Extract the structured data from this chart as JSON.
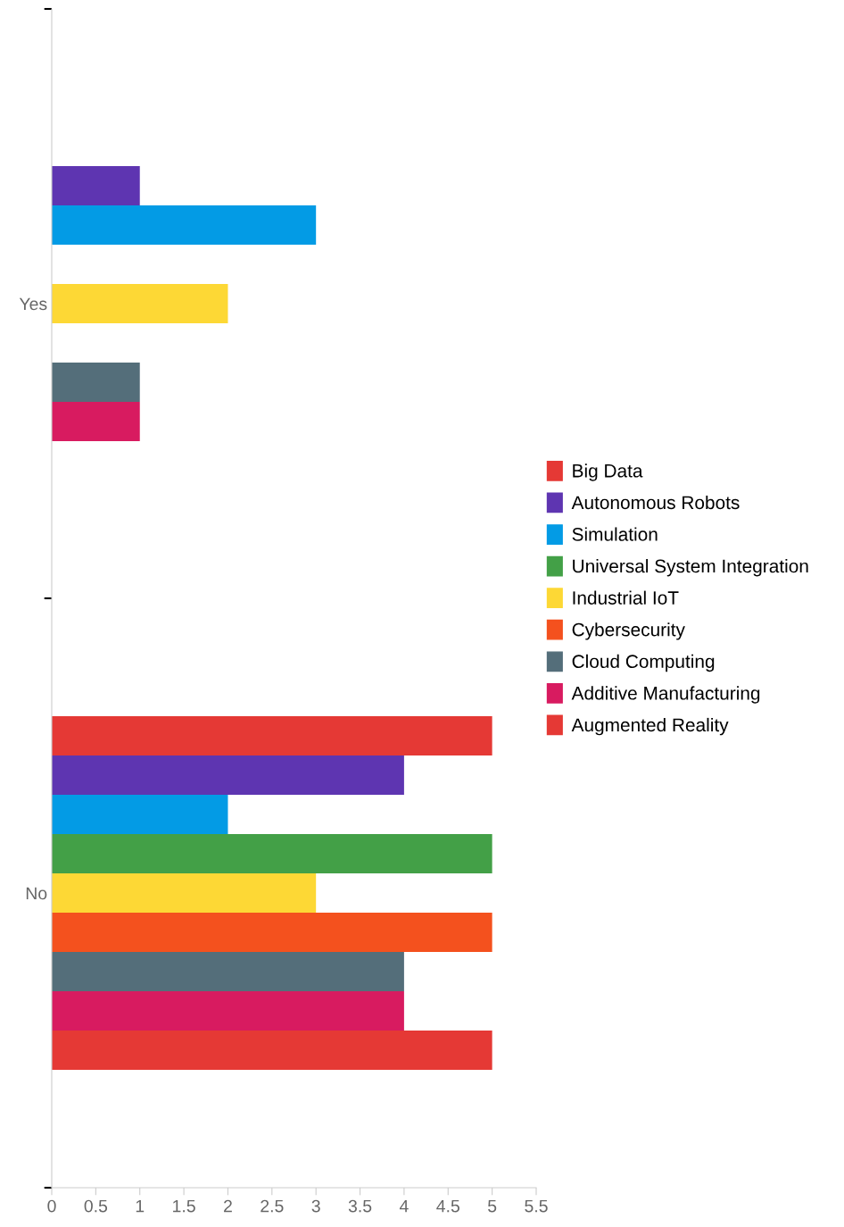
{
  "chart_data": {
    "type": "bar",
    "orientation": "horizontal",
    "categories": [
      "Yes",
      "No"
    ],
    "series": [
      {
        "name": "Big Data",
        "color": "#e53935",
        "values": [
          null,
          5
        ]
      },
      {
        "name": "Autonomous Robots",
        "color": "#5e35b1",
        "values": [
          1,
          4
        ]
      },
      {
        "name": "Simulation",
        "color": "#039be5",
        "values": [
          3,
          2
        ]
      },
      {
        "name": "Universal System Integration",
        "color": "#43a047",
        "values": [
          null,
          5
        ]
      },
      {
        "name": "Industrial IoT",
        "color": "#fdd835",
        "values": [
          2,
          3
        ]
      },
      {
        "name": "Cybersecurity",
        "color": "#f4511e",
        "values": [
          null,
          5
        ]
      },
      {
        "name": "Cloud Computing",
        "color": "#546e7a",
        "values": [
          1,
          4
        ]
      },
      {
        "name": "Additive Manufacturing",
        "color": "#d81b60",
        "values": [
          1,
          4
        ]
      },
      {
        "name": "Augmented Reality",
        "color": "#e53935",
        "values": [
          null,
          5
        ]
      }
    ],
    "xlim": [
      0,
      5.5
    ],
    "xticks": [
      0,
      0.5,
      1,
      1.5,
      2,
      2.5,
      3,
      3.5,
      4,
      4.5,
      5,
      5.5
    ],
    "grid": false,
    "legend": "right"
  }
}
